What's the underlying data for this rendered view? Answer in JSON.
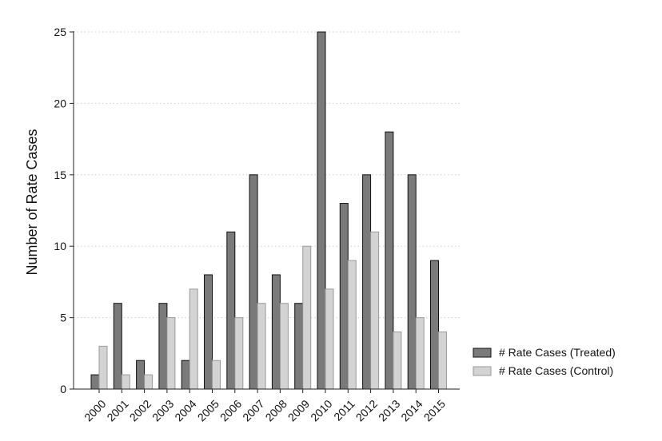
{
  "chart_data": {
    "type": "bar",
    "title": "",
    "xlabel": "",
    "ylabel": "Number of Rate Cases",
    "ylim": [
      0,
      25
    ],
    "yticks": [
      0,
      5,
      10,
      15,
      20,
      25
    ],
    "grid": "horizontal-dotted",
    "legend_position": "right-bottom",
    "categories": [
      "2000",
      "2001",
      "2002",
      "2003",
      "2004",
      "2005",
      "2006",
      "2007",
      "2008",
      "2009",
      "2010",
      "2011",
      "2012",
      "2013",
      "2014",
      "2015"
    ],
    "series": [
      {
        "name": "# Rate Cases (Treated)",
        "color": "#7a7a7a",
        "values": [
          1,
          6,
          2,
          6,
          2,
          8,
          11,
          15,
          8,
          6,
          25,
          13,
          15,
          18,
          15,
          9
        ]
      },
      {
        "name": "# Rate Cases (Control)",
        "color": "#d3d3d3",
        "values": [
          3,
          1,
          1,
          5,
          7,
          2,
          5,
          6,
          6,
          10,
          7,
          9,
          11,
          4,
          5,
          4
        ]
      }
    ]
  }
}
